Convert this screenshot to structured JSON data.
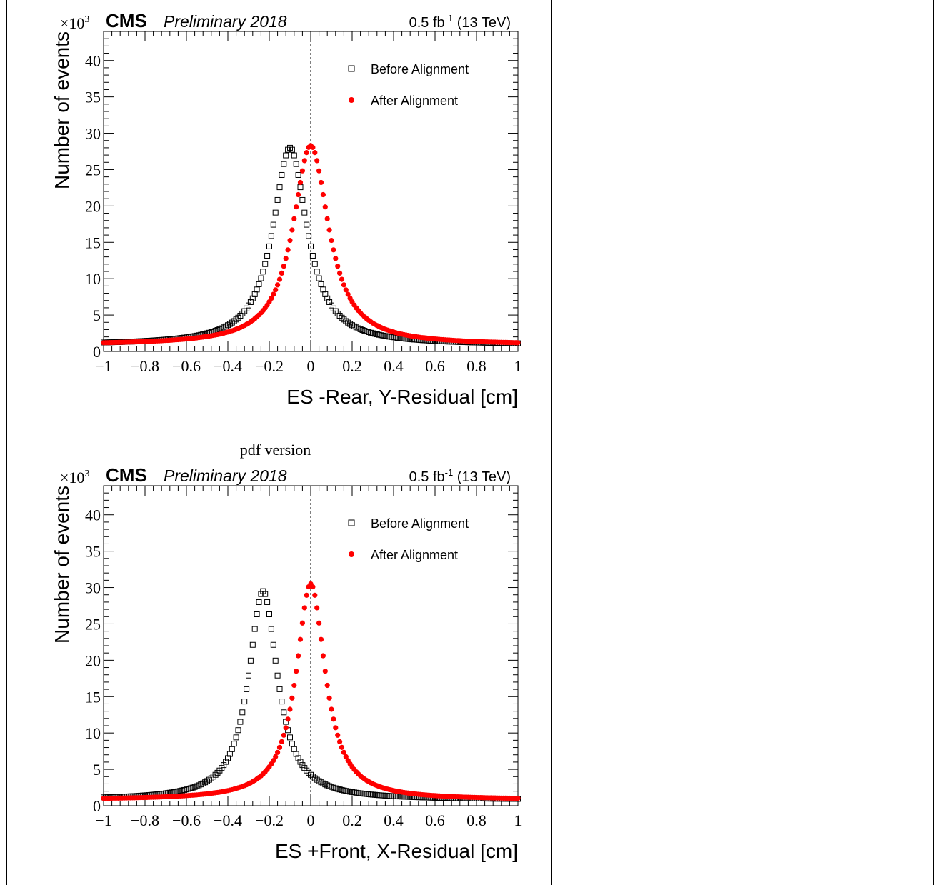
{
  "caption": "pdf version",
  "colors": {
    "before": "#000000",
    "after": "#ff0000"
  },
  "chart_data": [
    {
      "type": "scatter",
      "header": {
        "experiment": "CMS",
        "status": "Preliminary 2018",
        "lumi": "0.5 fb",
        "lumi_exp": "-1",
        "energy": "(13 TeV)"
      },
      "xlabel": "ES -Rear, Y-Residual [cm]",
      "ylabel": "Number of events",
      "y_multiplier": "×10",
      "y_multiplier_exp": "3",
      "xlim": [
        -1,
        1
      ],
      "ylim": [
        0,
        44
      ],
      "xticks": [
        -1,
        -0.8,
        -0.6,
        -0.4,
        -0.2,
        0,
        0.2,
        0.4,
        0.6,
        0.8,
        1
      ],
      "xtick_labels": [
        "−1",
        "−0.8",
        "−0.6",
        "−0.4",
        "−0.2",
        "0",
        "0.2",
        "0.4",
        "0.6",
        "0.8",
        "1"
      ],
      "yticks": [
        0,
        5,
        10,
        15,
        20,
        25,
        30,
        35,
        40
      ],
      "ytick_labels": [
        "0",
        "5",
        "10",
        "15",
        "20",
        "25",
        "30",
        "35",
        "40"
      ],
      "reference_line_x": 0,
      "legend_position": "top-right",
      "series": [
        {
          "name": "Before Alignment",
          "marker": "open-square",
          "peak_x": -0.1,
          "peak_y": 28.0,
          "gamma": 0.1,
          "baseline": 0.9
        },
        {
          "name": "After Alignment",
          "marker": "filled-circle",
          "peak_x": 0.0,
          "peak_y": 28.3,
          "gamma": 0.105,
          "baseline": 0.9
        }
      ]
    },
    {
      "type": "scatter",
      "header": {
        "experiment": "CMS",
        "status": "Preliminary 2018",
        "lumi": "0.5 fb",
        "lumi_exp": "-1",
        "energy": "(13 TeV)"
      },
      "xlabel": "ES +Front, X-Residual [cm]",
      "ylabel": "Number of events",
      "y_multiplier": "×10",
      "y_multiplier_exp": "3",
      "xlim": [
        -1,
        1
      ],
      "ylim": [
        0,
        44
      ],
      "xticks": [
        -1,
        -0.8,
        -0.6,
        -0.4,
        -0.2,
        0,
        0.2,
        0.4,
        0.6,
        0.8,
        1
      ],
      "xtick_labels": [
        "−1",
        "−0.8",
        "−0.6",
        "−0.4",
        "−0.2",
        "0",
        "0.2",
        "0.4",
        "0.6",
        "0.8",
        "1"
      ],
      "yticks": [
        0,
        5,
        10,
        15,
        20,
        25,
        30,
        35,
        40
      ],
      "ytick_labels": [
        "0",
        "5",
        "10",
        "15",
        "20",
        "25",
        "30",
        "35",
        "40"
      ],
      "reference_line_x": 0,
      "legend_position": "top-right",
      "series": [
        {
          "name": "Before Alignment",
          "marker": "open-square",
          "peak_x": -0.23,
          "peak_y": 29.5,
          "gamma": 0.085,
          "baseline": 0.8
        },
        {
          "name": "After Alignment",
          "marker": "filled-circle",
          "peak_x": 0.0,
          "peak_y": 30.5,
          "gamma": 0.085,
          "baseline": 0.8
        }
      ]
    }
  ]
}
